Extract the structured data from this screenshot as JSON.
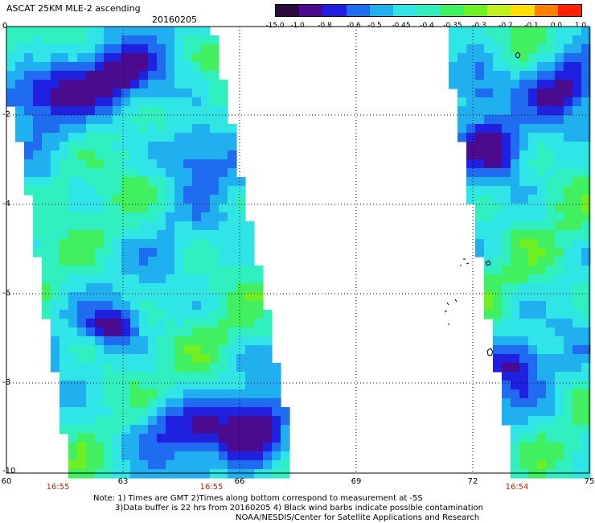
{
  "header": {
    "title": "ASCAT 25KM MLE-2 ascending",
    "date": "20160205"
  },
  "colorbar": {
    "labels": [
      "-15.0",
      "-1.0",
      "-0.8",
      "-0.6",
      "-0.5",
      "-0.45",
      "-0.4",
      "-0.35",
      "-0.3",
      "-0.2",
      "-0.1",
      "0.0",
      "1.0"
    ],
    "colors": [
      "#2b0a3d",
      "#4b0b8f",
      "#2020e0",
      "#1f6cf0",
      "#20b0f0",
      "#30e5e5",
      "#30f0c0",
      "#40f060",
      "#70f020",
      "#c0f020",
      "#ffe000",
      "#ff8000",
      "#ff2000"
    ]
  },
  "map": {
    "x_ticks": [
      "60",
      "63",
      "66",
      "69",
      "72",
      "75"
    ],
    "y_ticks": [
      "0",
      "-2",
      "-4",
      "-6",
      "-8",
      "-10"
    ],
    "swath_times": [
      "16:55",
      "16:55",
      "16:54"
    ]
  },
  "notes": {
    "line1": "Note: 1) Times are GMT 2)Times along bottom correspond to measurement at -5S",
    "line2": "3)Data buffer is 22 hrs from 20160205 4) Black wind barbs indicate possible contamination",
    "line3": "NOAA/NESDIS/Center for Satellite Applications and Research"
  }
}
